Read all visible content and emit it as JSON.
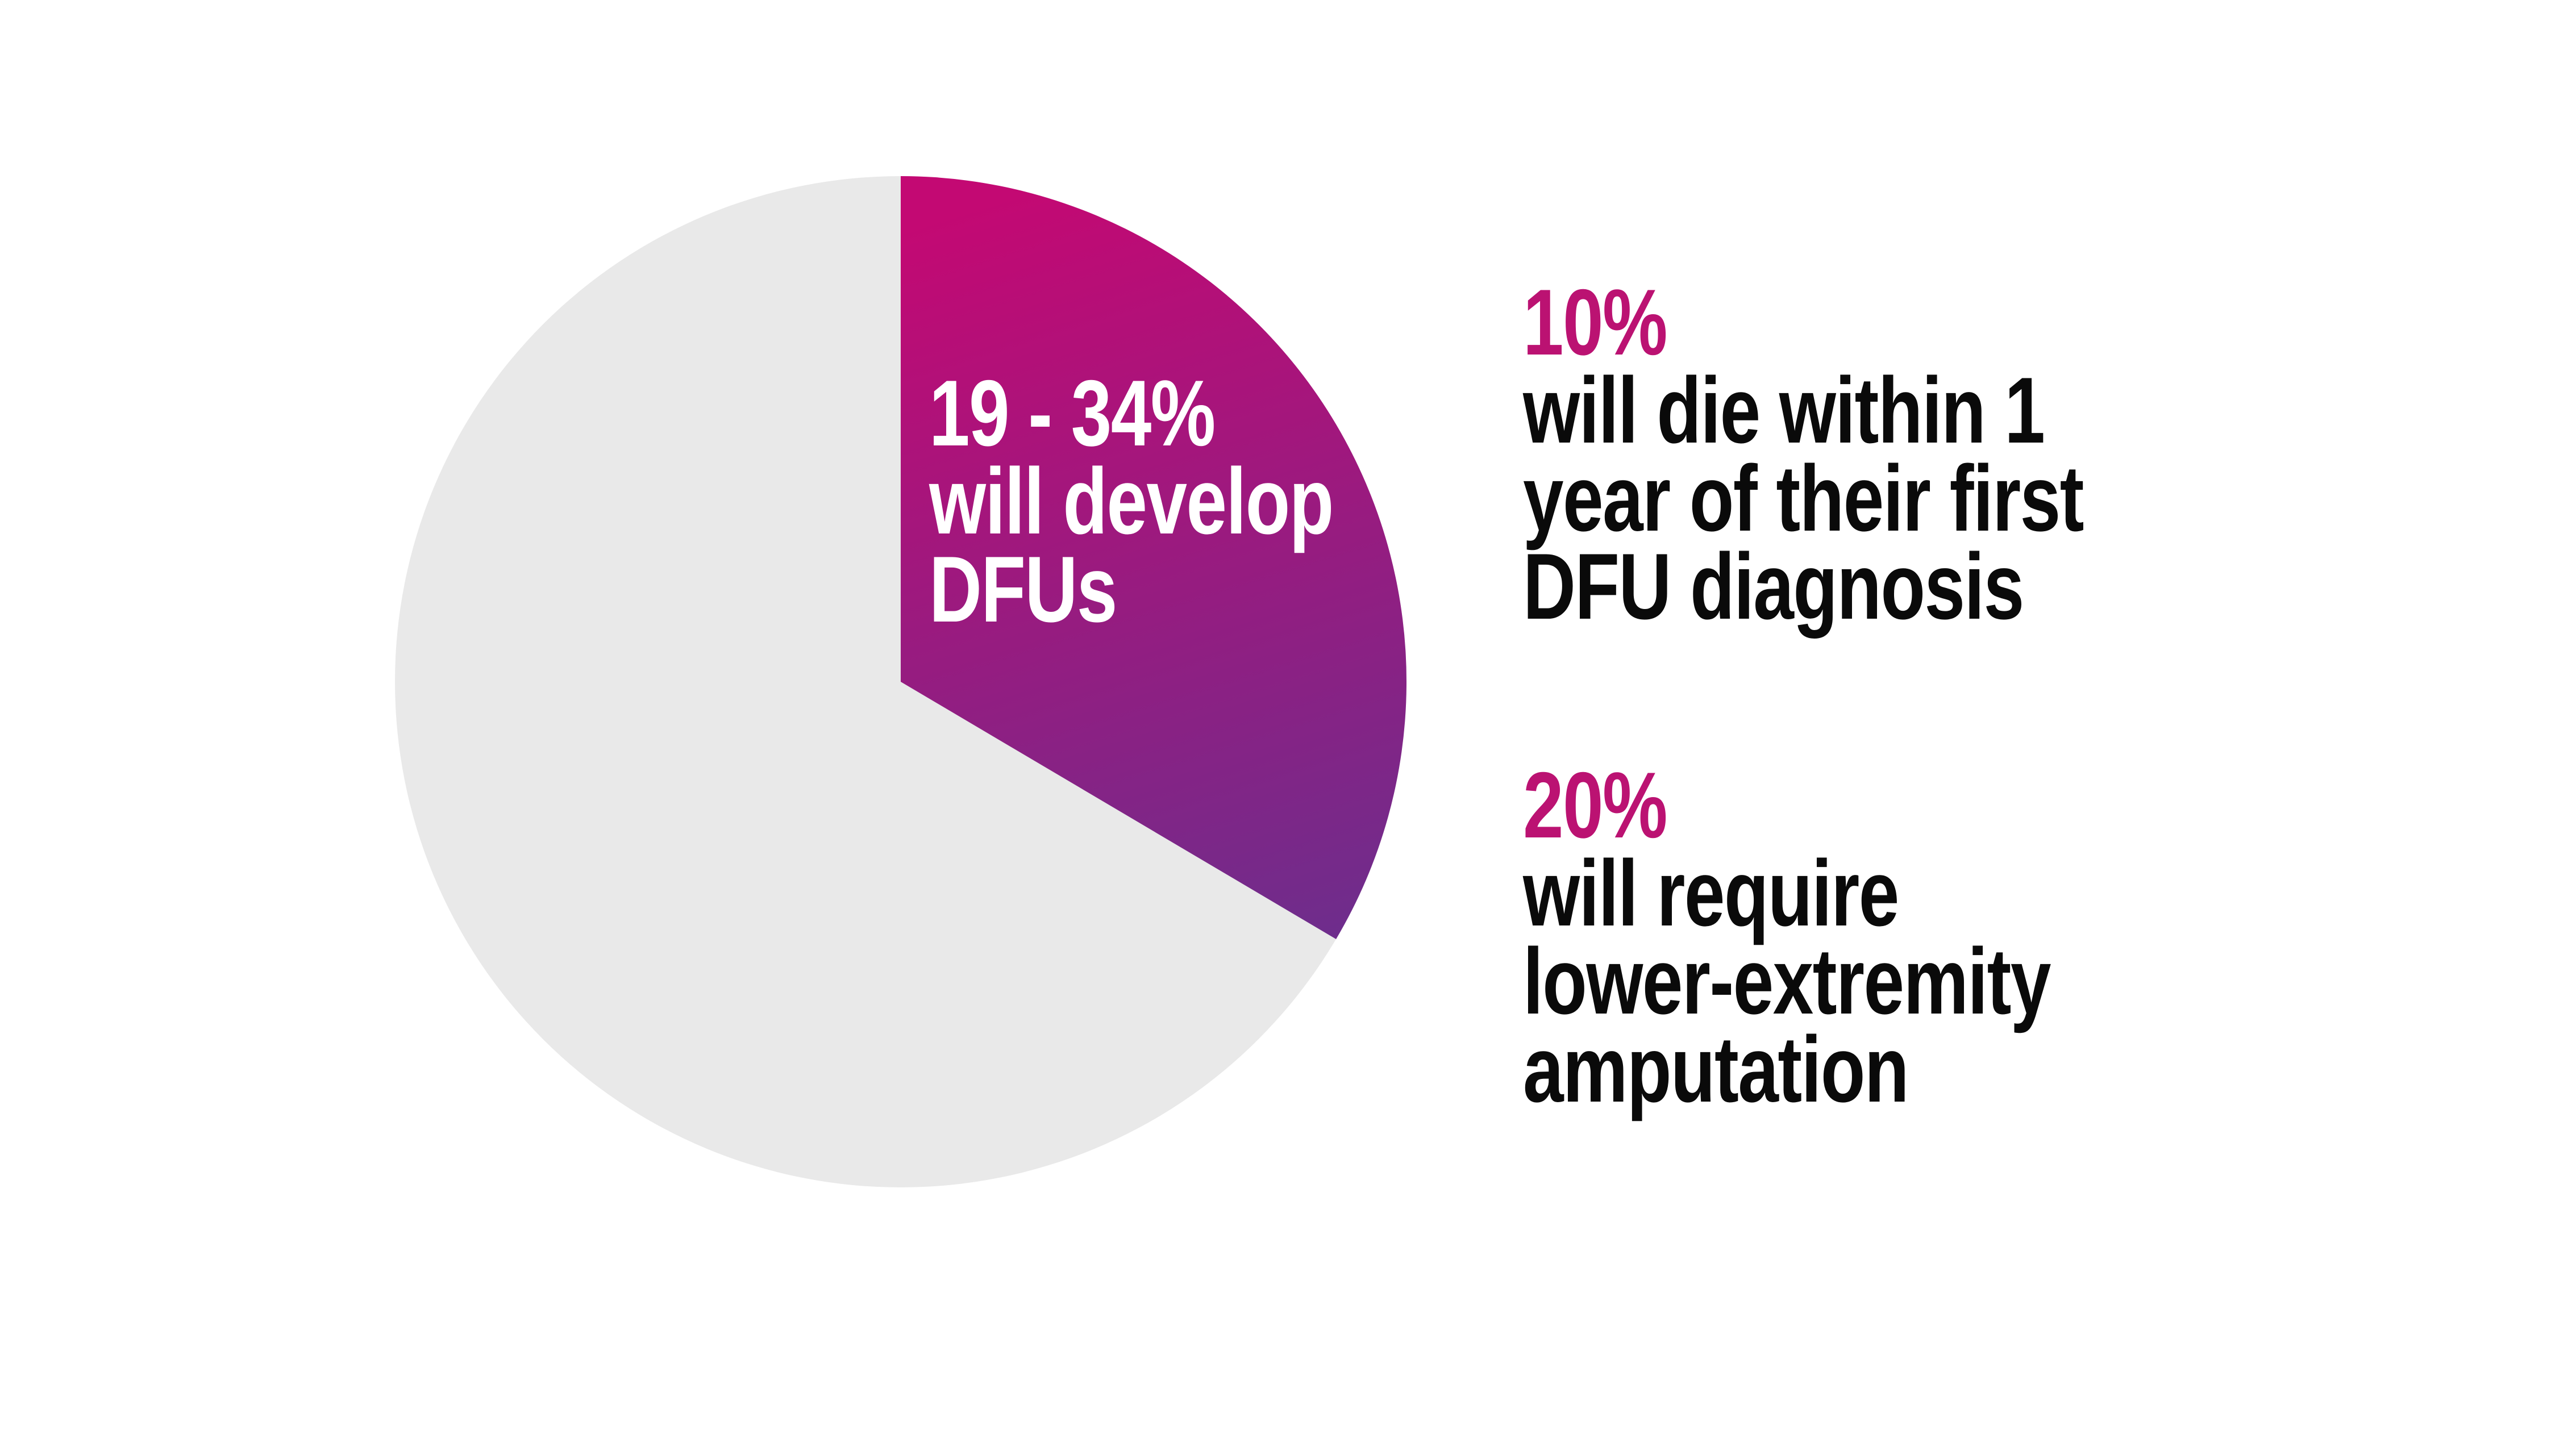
{
  "colors": {
    "background": "#ffffff",
    "accent": "#bb1272",
    "pie_remainder": "#e9e9e9",
    "slice_gradient_start": "#c30973",
    "slice_gradient_end": "#6e2d8c",
    "pie_label_text": "#ffffff",
    "body_text": "#0a0a0a"
  },
  "chart_data": {
    "type": "pie",
    "title": "",
    "start_angle_deg": 0,
    "direction": "clockwise",
    "legend_position": "none",
    "slices": [
      {
        "label": "19 - 34% will develop DFUs",
        "display_fraction_pct": 33.5,
        "colors": [
          "#c30973",
          "#6e2d8c"
        ]
      },
      {
        "label": "remainder",
        "display_fraction_pct": 66.5,
        "colors": [
          "#e9e9e9"
        ]
      }
    ],
    "annotations": [
      {
        "value": "10%",
        "text": "will die within 1 year of their first DFU diagnosis"
      },
      {
        "value": "20%",
        "text": "will require lower-extremity amputation"
      }
    ]
  },
  "pie_label": {
    "line1": "19 - 34%",
    "line2": "will develop",
    "line3": "DFUs"
  },
  "stats": [
    {
      "value": "10%",
      "line1": "will die within 1",
      "line2": "year of their first",
      "line3": "DFU diagnosis"
    },
    {
      "value": "20%",
      "line1": "will require",
      "line2": "lower-extremity",
      "line3": "amputation"
    }
  ]
}
